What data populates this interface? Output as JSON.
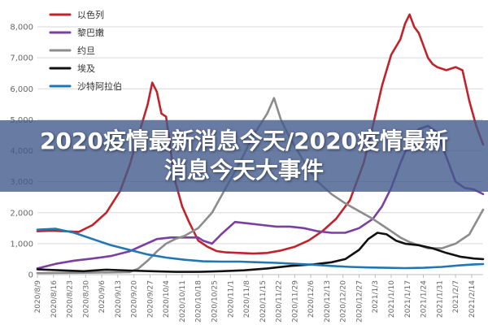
{
  "banner": {
    "title": "2020疫情最新消息今天/2020疫情最新消息今天大事件"
  },
  "colors": {
    "bg": "#ffffff",
    "grid": "#d9d9d9",
    "banner": "#425a8c"
  },
  "chart_data": {
    "type": "line",
    "title": "",
    "xlabel": "",
    "ylabel": "",
    "ylim": [
      0,
      8500
    ],
    "yticks": [
      0,
      1000,
      2000,
      3000,
      4000,
      5000,
      6000,
      7000,
      8000
    ],
    "ytick_labels": [
      "0",
      "1,000",
      "2,000",
      "3,000",
      "4,000",
      "5,000",
      "6,000",
      "7,000",
      "8,000"
    ],
    "xlim": [
      0,
      194
    ],
    "xticks": [
      0,
      7,
      14,
      21,
      28,
      35,
      42,
      49,
      56,
      63,
      70,
      77,
      84,
      91,
      98,
      105,
      112,
      119,
      126,
      133,
      140,
      147,
      154,
      161,
      168,
      175,
      182,
      189
    ],
    "xtick_labels": [
      "2020/8/9",
      "2020/8/16",
      "2020/8/23",
      "2020/8/30",
      "2020/9/6",
      "2020/9/13",
      "2020/9/20",
      "2020/9/27",
      "2020/10/4",
      "2020/10/11",
      "2020/10/18",
      "2020/10/25",
      "2020/11/1",
      "2020/11/8",
      "2020/11/15",
      "2020/11/22",
      "2020/11/29",
      "2020/12/6",
      "2020/12/13",
      "2020/12/20",
      "2020/12/27",
      "2021/1/3",
      "2021/1/10",
      "2021/1/17",
      "2021/1/24",
      "2021/1/31",
      "2021/2/7",
      "2021/2/14"
    ],
    "grid": true,
    "legend": "top-left",
    "series": [
      {
        "name": "以色列",
        "color": "#c1232b",
        "x": [
          0,
          6,
          12,
          18,
          24,
          30,
          36,
          40,
          44,
          48,
          50,
          52,
          54,
          56,
          58,
          60,
          63,
          66,
          70,
          74,
          78,
          82,
          88,
          94,
          100,
          106,
          112,
          118,
          124,
          130,
          136,
          142,
          146,
          150,
          154,
          158,
          160,
          162,
          164,
          166,
          168,
          170,
          172,
          174,
          178,
          182,
          185,
          188,
          191,
          194
        ],
        "y": [
          1400,
          1420,
          1400,
          1380,
          1600,
          2000,
          2700,
          3500,
          4500,
          5500,
          6200,
          5900,
          5200,
          5100,
          4000,
          3000,
          2200,
          1700,
          1100,
          900,
          760,
          720,
          700,
          680,
          700,
          780,
          900,
          1100,
          1400,
          1800,
          2400,
          3600,
          4800,
          6100,
          7100,
          7600,
          8100,
          8400,
          8000,
          7800,
          7400,
          7000,
          6800,
          6700,
          6600,
          6700,
          6600,
          5600,
          4800,
          4200
        ]
      },
      {
        "name": "黎巴嫩",
        "color": "#7b3fa0",
        "x": [
          0,
          8,
          16,
          24,
          32,
          40,
          46,
          52,
          58,
          64,
          70,
          72,
          76,
          80,
          86,
          92,
          98,
          104,
          110,
          116,
          122,
          128,
          134,
          140,
          146,
          150,
          154,
          158,
          162,
          166,
          170,
          174,
          178,
          182,
          186,
          190,
          194
        ],
        "y": [
          200,
          350,
          450,
          520,
          600,
          750,
          950,
          1150,
          1200,
          1200,
          1200,
          1100,
          1000,
          1300,
          1700,
          1650,
          1600,
          1550,
          1550,
          1500,
          1400,
          1350,
          1350,
          1500,
          1800,
          2200,
          2800,
          3600,
          4300,
          4700,
          4800,
          4600,
          3800,
          3000,
          2800,
          2750,
          2600
        ]
      },
      {
        "name": "约旦",
        "color": "#8c8c8c",
        "x": [
          0,
          20,
          40,
          44,
          48,
          52,
          56,
          60,
          64,
          70,
          76,
          82,
          88,
          94,
          100,
          103,
          106,
          110,
          114,
          118,
          122,
          128,
          134,
          140,
          146,
          150,
          154,
          158,
          162,
          166,
          170,
          176,
          182,
          188,
          194
        ],
        "y": [
          50,
          60,
          80,
          200,
          450,
          750,
          1000,
          1150,
          1250,
          1500,
          2000,
          2800,
          3600,
          4500,
          5200,
          5700,
          5000,
          4400,
          3900,
          3400,
          3000,
          2600,
          2300,
          2050,
          1800,
          1600,
          1400,
          1200,
          1050,
          950,
          850,
          850,
          1000,
          1300,
          2100
        ]
      },
      {
        "name": "埃及",
        "color": "#111111",
        "x": [
          0,
          10,
          20,
          30,
          40,
          50,
          60,
          70,
          80,
          90,
          100,
          110,
          120,
          128,
          134,
          140,
          144,
          148,
          152,
          156,
          160,
          166,
          172,
          178,
          184,
          190,
          194
        ],
        "y": [
          170,
          140,
          110,
          160,
          130,
          110,
          90,
          90,
          110,
          140,
          200,
          280,
          330,
          400,
          500,
          800,
          1150,
          1350,
          1300,
          1100,
          1000,
          950,
          850,
          700,
          580,
          520,
          500
        ]
      },
      {
        "name": "沙特阿拉伯",
        "color": "#1f77b4",
        "x": [
          0,
          8,
          16,
          24,
          32,
          40,
          48,
          56,
          64,
          72,
          80,
          88,
          96,
          104,
          112,
          120,
          128,
          136,
          144,
          152,
          160,
          168,
          176,
          184,
          190,
          194
        ],
        "y": [
          1450,
          1480,
          1350,
          1150,
          950,
          800,
          650,
          550,
          480,
          430,
          420,
          420,
          400,
          380,
          350,
          320,
          280,
          250,
          230,
          220,
          210,
          220,
          250,
          300,
          330,
          340
        ]
      }
    ]
  }
}
